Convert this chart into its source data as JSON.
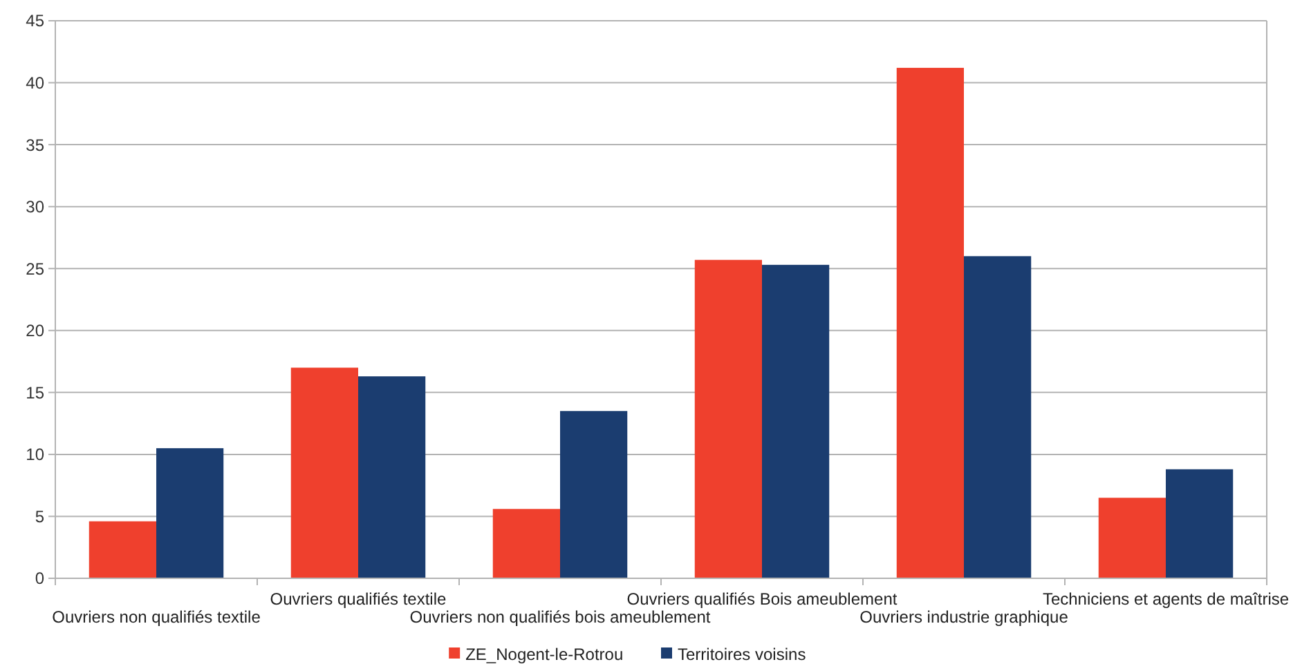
{
  "chart_data": {
    "type": "bar",
    "categories": [
      "Ouvriers non qualifiés textile",
      "Ouvriers qualifiés textile",
      "Ouvriers non qualifiés bois ameublement",
      "Ouvriers qualifiés Bois ameublement",
      "Ouvriers industrie graphique",
      "Techniciens et agents de maîtrise"
    ],
    "series": [
      {
        "name": "ZE_Nogent-le-Rotrou",
        "color": "#ef402d",
        "values": [
          4.6,
          17.0,
          5.6,
          25.7,
          41.2,
          6.5
        ]
      },
      {
        "name": "Territoires voisins",
        "color": "#1b3d70",
        "values": [
          10.5,
          16.3,
          13.5,
          25.3,
          26.0,
          8.8
        ]
      }
    ],
    "ylim": [
      0,
      45
    ],
    "yticks": [
      0,
      5,
      10,
      15,
      20,
      25,
      30,
      35,
      40,
      45
    ],
    "grid": "y",
    "legend": "bottom"
  }
}
